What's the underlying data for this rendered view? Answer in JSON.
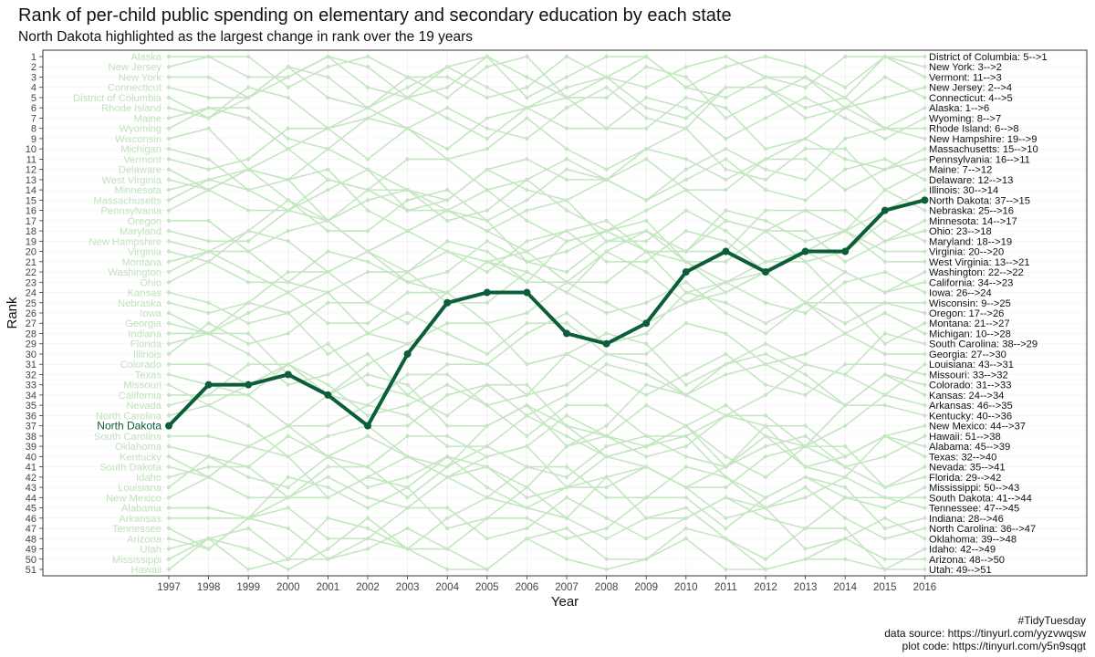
{
  "chart_data": {
    "type": "line",
    "title": "Rank of per-child public spending on elementary and secondary education by each state",
    "subtitle": "North Dakota highlighted as the largest change in rank over the 19 years",
    "xlabel": "Year",
    "ylabel": "Rank",
    "x": [
      1997,
      1998,
      1999,
      2000,
      2001,
      2002,
      2003,
      2004,
      2005,
      2006,
      2007,
      2008,
      2009,
      2010,
      2011,
      2012,
      2013,
      2014,
      2015,
      2016
    ],
    "ylim": [
      51,
      1
    ],
    "y_ticks": [
      1,
      2,
      3,
      4,
      5,
      6,
      7,
      8,
      9,
      10,
      11,
      12,
      13,
      14,
      15,
      16,
      17,
      18,
      19,
      20,
      21,
      22,
      23,
      24,
      25,
      26,
      27,
      28,
      29,
      30,
      31,
      32,
      33,
      34,
      35,
      36,
      37,
      38,
      39,
      40,
      41,
      42,
      43,
      44,
      45,
      46,
      47,
      48,
      49,
      50,
      51
    ],
    "highlight": {
      "name": "North Dakota",
      "values": [
        37,
        33,
        33,
        32,
        34,
        37,
        30,
        25,
        24,
        24,
        28,
        29,
        27,
        22,
        20,
        22,
        20,
        20,
        16,
        15
      ],
      "color": "#0b5e38"
    },
    "background_color": "#c4e6c0",
    "left_labels": [
      "Alaska",
      "New Jersey",
      "New York",
      "Connecticut",
      "District of Columbia",
      "Rhode Island",
      "Maine",
      "Wyoming",
      "Wisconsin",
      "Michigan",
      "Vermont",
      "Delaware",
      "West Virginia",
      "Minnesota",
      "Massachusetts",
      "Pennsylvania",
      "Oregon",
      "Maryland",
      "New Hampshire",
      "Virginia",
      "Montana",
      "Washington",
      "Ohio",
      "Kansas",
      "Nebraska",
      "Iowa",
      "Georgia",
      "Indiana",
      "Florida",
      "Illinois",
      "Colorado",
      "Texas",
      "Missouri",
      "California",
      "Nevada",
      "North Carolina",
      "North Dakota",
      "South Carolina",
      "Oklahoma",
      "Kentucky",
      "South Dakota",
      "Idaho",
      "Louisiana",
      "New Mexico",
      "Alabama",
      "Arkansas",
      "Tennessee",
      "Arizona",
      "Utah",
      "Mississippi",
      "Hawaii"
    ],
    "right_labels": [
      "District of Columbia: 5-->1",
      "New York: 3-->2",
      "Vermont: 11-->3",
      "New Jersey: 2-->4",
      "Connecticut: 4-->5",
      "Alaska: 1-->6",
      "Wyoming: 8-->7",
      "Rhode Island: 6-->8",
      "New Hampshire: 19-->9",
      "Massachusetts: 15-->10",
      "Pennsylvania: 16-->11",
      "Maine: 7-->12",
      "Delaware: 12-->13",
      "Illinois: 30-->14",
      "North Dakota: 37-->15",
      "Nebraska: 25-->16",
      "Minnesota: 14-->17",
      "Ohio: 23-->18",
      "Maryland: 18-->19",
      "Virginia: 20-->20",
      "West Virginia: 13-->21",
      "Washington: 22-->22",
      "California: 34-->23",
      "Iowa: 26-->24",
      "Wisconsin: 9-->25",
      "Oregon: 17-->26",
      "Montana: 21-->27",
      "Michigan: 10-->28",
      "South Carolina: 38-->29",
      "Georgia: 27-->30",
      "Louisiana: 43-->31",
      "Missouri: 33-->32",
      "Colorado: 31-->33",
      "Kansas: 24-->34",
      "Arkansas: 46-->35",
      "Kentucky: 40-->36",
      "New Mexico: 44-->37",
      "Hawaii: 51-->38",
      "Alabama: 45-->39",
      "Texas: 32-->40",
      "Nevada: 35-->41",
      "Florida: 29-->42",
      "Mississippi: 50-->43",
      "South Dakota: 41-->44",
      "Tennessee: 47-->45",
      "Indiana: 28-->46",
      "North Carolina: 36-->47",
      "Oklahoma: 39-->48",
      "Idaho: 42-->49",
      "Arizona: 48-->50",
      "Utah: 49-->51"
    ],
    "grid": true,
    "legend": "none"
  },
  "caption": {
    "line1": "#TidyTuesday",
    "line2": "data source: https://tinyurl.com/yyzvwqsw",
    "line3": "plot code: https://tinyurl.com/y5n9sqgt"
  }
}
